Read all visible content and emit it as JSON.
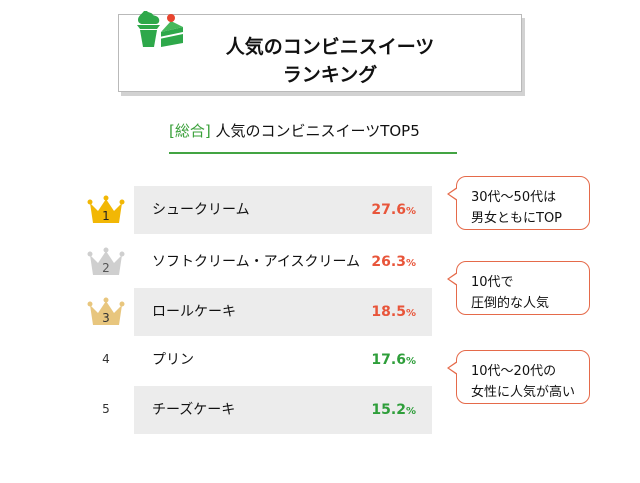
{
  "header": {
    "title_line1": "人気のコンビニスイーツ",
    "title_line2": "ランキング"
  },
  "subheading": {
    "category": "[総合]",
    "text": " 人気のコンビニスイーツTOP5"
  },
  "chart_data": {
    "type": "table",
    "title": "[総合] 人気のコンビニスイーツTOP5",
    "unit": "%",
    "rows": [
      {
        "rank": "1",
        "item": "シュークリーム",
        "value": 27.6,
        "value_text": "27.6",
        "color": "#e8553a"
      },
      {
        "rank": "2",
        "item": "ソフトクリーム・アイスクリーム",
        "value": 26.3,
        "value_text": "26.3",
        "color": "#e8553a"
      },
      {
        "rank": "3",
        "item": "ロールケーキ",
        "value": 18.5,
        "value_text": "18.5",
        "color": "#e8553a"
      },
      {
        "rank": "4",
        "item": "プリン",
        "value": 17.6,
        "value_text": "17.6",
        "color": "#2e9e3a"
      },
      {
        "rank": "5",
        "item": "チーズケーキ",
        "value": 15.2,
        "value_text": "15.2",
        "color": "#2e9e3a"
      }
    ],
    "annotations": [
      {
        "line1": "30代〜50代は",
        "line2": "男女ともにTOP"
      },
      {
        "line1": "10代で",
        "line2": "圧倒的な人気"
      },
      {
        "line1": "10代〜20代の",
        "line2": "女性に人気が高い"
      }
    ]
  },
  "colors": {
    "gold_crown": "#f2b705",
    "silver_crown": "#cfcfcf",
    "bronze_crown": "#e8c67e",
    "accent_green": "#43a443",
    "callout_border": "#e56a4a"
  }
}
